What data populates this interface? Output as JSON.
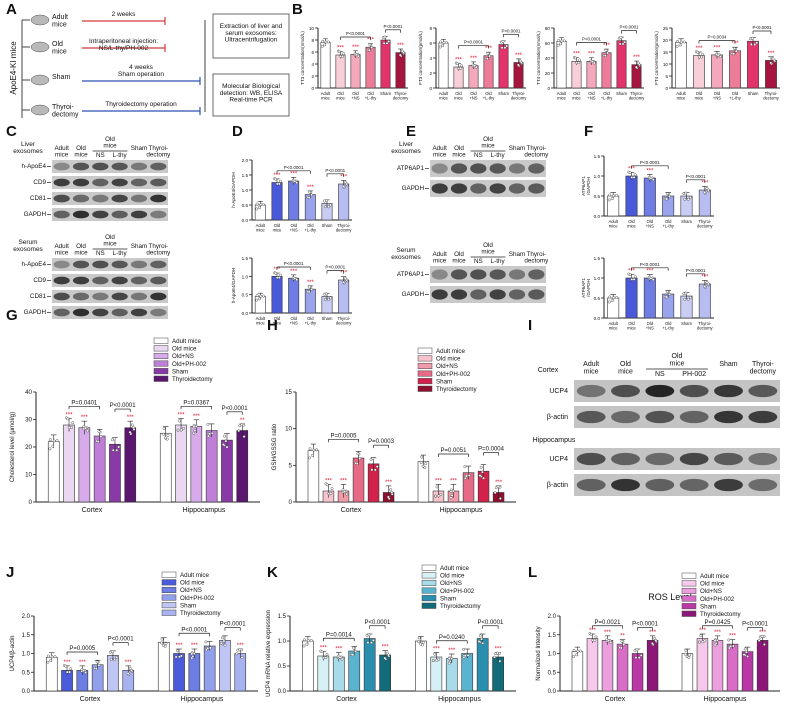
{
  "panel_letters": [
    "A",
    "B",
    "C",
    "D",
    "E",
    "F",
    "G",
    "H",
    "I",
    "J",
    "K",
    "L"
  ],
  "panel_a": {
    "side_label": "ApoE4-KI mice",
    "groups": [
      {
        "label": "Adult\nmice",
        "arrow": "2 weeks"
      },
      {
        "label": "Old\nmice",
        "arrow": "Intraperitoneal injection:\nNS/L-thy/PH-002"
      },
      {
        "label": "Sham",
        "arrow": "Sham operation",
        "duration": "4 weeks"
      },
      {
        "label": "Thyroi-\ndectomy",
        "arrow": "Thyroidectomy operation"
      }
    ],
    "box1": "Extraction of liver and\nserum exosomes:\nUltracentrifugation",
    "box2": "Molecular Biological\ndetection: WB, ELISA\nReal-time PCR"
  },
  "blot_c_top": {
    "title": "Liver\nexosomes",
    "columns": [
      "Adult\nmice",
      "Old\nmice",
      "NS",
      "L-thy",
      "Sham",
      "Thyroi-\ndectomy"
    ],
    "bracket_label": "Old\nmice",
    "rows": [
      "h-ApoE4",
      "CD9",
      "CD81",
      "GAPDH"
    ]
  },
  "blot_c_bottom": {
    "title": "Serum\nexosomes",
    "columns": [
      "Adult\nmice",
      "Old\nmice",
      "NS",
      "L-thy",
      "Sham",
      "Thyroi-\ndectomy"
    ],
    "bracket_label": "Old\nmice",
    "rows": [
      "h-ApoE4",
      "CD9",
      "CD81",
      "GAPDH"
    ]
  },
  "blot_e_top": {
    "title": "Liver\nexosomes",
    "columns": [
      "Adult\nmice",
      "Old\nmice",
      "NS",
      "L-thy",
      "Sham",
      "Thyroi-\ndectomy"
    ],
    "bracket_label": "Old\nmice",
    "rows": [
      "ATP6AP1",
      "GAPDH"
    ]
  },
  "blot_e_bottom": {
    "title": "Serum\nexosomes",
    "columns": [
      "Adult\nmice",
      "Old\nmice",
      "NS",
      "L-thy",
      "Sham",
      "Thyroi-\ndectomy"
    ],
    "bracket_label": "Old\nmice",
    "rows": [
      "ATP6AP1",
      "GAPDH"
    ]
  },
  "blot_i": {
    "columns": [
      "Adult\nmice",
      "Old\nmice",
      "NS",
      "PH-002",
      "Sham",
      "Thyroi-\ndectomy"
    ],
    "bracket_label": "Old\nmice",
    "section1": "Cortex",
    "section2": "Hippocampus",
    "rows": [
      "UCP4",
      "β-actin",
      "UCP4",
      "β-actin"
    ]
  },
  "chart_data": [
    {
      "id": "B1",
      "type": "bar",
      "categories": [
        "Adult\nmice",
        "Old\nmice",
        "Old\n+NS",
        "Old\n+L-thy",
        "Sham",
        "Thyroi-\ndectomy"
      ],
      "values": [
        7.6,
        5.5,
        5.6,
        6.8,
        8.0,
        5.9
      ],
      "ylabel": "TT3 concentration(nmol/L)",
      "ylim": [
        0,
        10
      ],
      "yticks": [
        "0",
        "2",
        "4",
        "6",
        "8",
        "10"
      ],
      "colors": [
        "#ffffff",
        "#f8cfd8",
        "#f3a9bb",
        "#ec7c98",
        "#e2336b",
        "#a6153d"
      ],
      "stars": [
        "",
        "***",
        "***",
        "***",
        "",
        "***"
      ],
      "brackets": [
        {
          "from": 1,
          "to": 3,
          "label": "P<0.0001"
        },
        {
          "from": 4,
          "to": 5,
          "label": "P<0.0001"
        }
      ]
    },
    {
      "id": "B2",
      "type": "bar",
      "categories": [
        "Adult\nmice",
        "Old\nmice",
        "Old\n+NS",
        "Old\n+L-thy",
        "Sham",
        "Thyroi-\ndectomy"
      ],
      "values": [
        6.0,
        2.8,
        3.0,
        4.3,
        5.8,
        3.4
      ],
      "ylabel": "FT3 concentration(pmol/L)",
      "ylim": [
        0,
        8
      ],
      "yticks": [
        "0",
        "2",
        "4",
        "6",
        "8"
      ],
      "colors": [
        "#ffffff",
        "#f8cfd8",
        "#f3a9bb",
        "#ec7c98",
        "#e2336b",
        "#a6153d"
      ],
      "stars": [
        "",
        "***",
        "***",
        "***",
        "",
        "***"
      ],
      "brackets": [
        {
          "from": 1,
          "to": 3,
          "label": "P<0.0001"
        },
        {
          "from": 4,
          "to": 5,
          "label": "P<0.0001"
        }
      ]
    },
    {
      "id": "B3",
      "type": "bar",
      "categories": [
        "Adult\nmice",
        "Old\nmice",
        "Old\n+NS",
        "Old\n+L-thy",
        "Sham",
        "Thyroi-\ndectomy"
      ],
      "values": [
        70,
        40,
        40,
        53,
        71,
        35
      ],
      "ylabel": "TT4 concentration(nmol/L)",
      "ylim": [
        0,
        90
      ],
      "yticks": [
        "0",
        "20",
        "40",
        "60",
        "80"
      ],
      "colors": [
        "#ffffff",
        "#f8cfd8",
        "#f3a9bb",
        "#ec7c98",
        "#e2336b",
        "#a6153d"
      ],
      "stars": [
        "",
        "***",
        "***",
        "***",
        "",
        "***"
      ],
      "brackets": [
        {
          "from": 1,
          "to": 3,
          "label": "P<0.0001"
        },
        {
          "from": 4,
          "to": 5,
          "label": "P<0.0001"
        }
      ]
    },
    {
      "id": "B4",
      "type": "bar",
      "categories": [
        "Adult\nmice",
        "Old\nmice",
        "Old\n+NS",
        "Old\n+L-thy",
        "Sham",
        "Thyroi-\ndectomy"
      ],
      "values": [
        19.0,
        13.5,
        13.8,
        15.5,
        19.5,
        11.5
      ],
      "ylabel": "FT4 concentration(pmol/L)",
      "ylim": [
        0,
        25
      ],
      "yticks": [
        "0",
        "5",
        "10",
        "15",
        "20",
        "25"
      ],
      "colors": [
        "#ffffff",
        "#f8cfd8",
        "#f3a9bb",
        "#ec7c98",
        "#e2336b",
        "#a6153d"
      ],
      "stars": [
        "",
        "***",
        "***",
        "***",
        "",
        "***"
      ],
      "brackets": [
        {
          "from": 1,
          "to": 3,
          "label": "P=0.0034"
        },
        {
          "from": 4,
          "to": 5,
          "label": "P<0.0001"
        }
      ]
    },
    {
      "id": "D1",
      "type": "bar",
      "categories": [
        "Adult\nmice",
        "Old\nmice",
        "Old\n+NS",
        "Old\n+L-thy",
        "Sham",
        "Thyroi-\ndectomy"
      ],
      "values": [
        0.5,
        1.25,
        1.3,
        0.85,
        0.55,
        1.2
      ],
      "ylabel": "h-ApoE4/GAPDH",
      "ylim": [
        0,
        2.0
      ],
      "yticks": [
        "0.0",
        "0.5",
        "1.0",
        "1.5",
        "2.0"
      ],
      "colors": [
        "#ffffff",
        "#4a59d9",
        "#6f7ce3",
        "#9aa4ec",
        "#c9cdf4",
        "#b7bdf0"
      ],
      "stars": [
        "",
        "***",
        "***",
        "***",
        "",
        "***"
      ],
      "brackets": [
        {
          "from": 1,
          "to": 3,
          "label": "P<0.0001"
        },
        {
          "from": 4,
          "to": 5,
          "label": "P<0.0001"
        }
      ]
    },
    {
      "id": "D2",
      "type": "bar",
      "categories": [
        "Adult\nmice",
        "Old\nmice",
        "Old\n+NS",
        "Old\n+L-thy",
        "Sham",
        "Thyroi-\ndectomy"
      ],
      "values": [
        0.45,
        1.0,
        0.95,
        0.65,
        0.45,
        0.9
      ],
      "ylabel": "h-ApoE4/GAPDH",
      "ylim": [
        0,
        1.5
      ],
      "yticks": [
        "0.0",
        "0.5",
        "1.0",
        "1.5"
      ],
      "colors": [
        "#ffffff",
        "#4a59d9",
        "#6f7ce3",
        "#9aa4ec",
        "#c9cdf4",
        "#b7bdf0"
      ],
      "stars": [
        "",
        "***",
        "***",
        "***",
        "",
        "***"
      ],
      "brackets": [
        {
          "from": 1,
          "to": 3,
          "label": "P<0.0001"
        },
        {
          "from": 4,
          "to": 5,
          "label": "P<0.0001"
        }
      ]
    },
    {
      "id": "F1",
      "type": "bar",
      "categories": [
        "Adult\nmice",
        "Old\nmice",
        "Old\n+NS",
        "Old\n+L-thy",
        "Sham",
        "Thyroi-\ndectomy"
      ],
      "values": [
        0.5,
        1.0,
        0.95,
        0.5,
        0.5,
        0.65
      ],
      "ylabel": "ATP6AP1\n/GAPDH",
      "ylim": [
        0,
        1.5
      ],
      "yticks": [
        "0.0",
        "0.5",
        "1.0",
        "1.5"
      ],
      "colors": [
        "#ffffff",
        "#4a59d9",
        "#6f7ce3",
        "#9aa4ec",
        "#c9cdf4",
        "#b7bdf0"
      ],
      "stars": [
        "",
        "***",
        "***",
        "",
        "",
        "***"
      ],
      "brackets": [
        {
          "from": 1,
          "to": 3,
          "label": "P<0.0001"
        },
        {
          "from": 4,
          "to": 5,
          "label": "P<0.0001"
        }
      ]
    },
    {
      "id": "F2",
      "type": "bar",
      "categories": [
        "Adult\nmice",
        "Old\nmice",
        "Old\n+NS",
        "Old\n+L-thy",
        "Sham",
        "Thyroi-\ndectomy"
      ],
      "values": [
        0.5,
        1.0,
        1.0,
        0.6,
        0.55,
        0.85
      ],
      "ylabel": "ATP6AP1\n/GAPDH",
      "ylim": [
        0,
        1.5
      ],
      "yticks": [
        "0.0",
        "0.5",
        "1.0",
        "1.5"
      ],
      "colors": [
        "#ffffff",
        "#4a59d9",
        "#6f7ce3",
        "#9aa4ec",
        "#c9cdf4",
        "#b7bdf0"
      ],
      "stars": [
        "",
        "***",
        "***",
        "",
        "",
        "***"
      ],
      "brackets": [
        {
          "from": 1,
          "to": 3,
          "label": "P<0.0001"
        },
        {
          "from": 4,
          "to": 5,
          "label": "P<0.0001"
        }
      ]
    },
    {
      "id": "G",
      "type": "bar",
      "groups": [
        "Cortex",
        "Hippocampus"
      ],
      "series": [
        {
          "name": "Adult mice",
          "values": [
            22,
            25
          ]
        },
        {
          "name": "Old mice",
          "values": [
            28,
            28
          ]
        },
        {
          "name": "Old+NS",
          "values": [
            27,
            27.5
          ]
        },
        {
          "name": "Old+PH-002",
          "values": [
            24,
            26
          ]
        },
        {
          "name": "Sham",
          "values": [
            21,
            22.5
          ]
        },
        {
          "name": "Thyroidectomy",
          "values": [
            27,
            26
          ]
        }
      ],
      "ylabel": "Cholesterol level (μmol/g)",
      "ylim": [
        0,
        40
      ],
      "yticks": [
        "0",
        "10",
        "20",
        "30",
        "40"
      ],
      "colors": [
        "#ffffff",
        "#ead7f2",
        "#d7abea",
        "#bf7fd9",
        "#8a3aa6",
        "#5b1670"
      ],
      "stars": [
        [
          "",
          "***",
          "***",
          "",
          "",
          "***"
        ],
        [
          "",
          "***",
          "***",
          "",
          "",
          "**"
        ]
      ],
      "brackets": [
        {
          "group": 0,
          "from": 1,
          "to": 3,
          "label": "P=0.0401"
        },
        {
          "group": 0,
          "from": 4,
          "to": 5,
          "label": "P<0.0001"
        },
        {
          "group": 1,
          "from": 1,
          "to": 3,
          "label": "P=0.0367"
        },
        {
          "group": 1,
          "from": 4,
          "to": 5,
          "label": "P<0.0001"
        }
      ]
    },
    {
      "id": "H",
      "type": "bar",
      "groups": [
        "Cortex",
        "Hippocampus"
      ],
      "series": [
        {
          "name": "Adult mice",
          "values": [
            7.0,
            5.5
          ]
        },
        {
          "name": "Old mice",
          "values": [
            1.5,
            1.5
          ]
        },
        {
          "name": "Old+NS",
          "values": [
            1.5,
            1.5
          ]
        },
        {
          "name": "Old+PH-002",
          "values": [
            6.0,
            4.0
          ]
        },
        {
          "name": "Sham",
          "values": [
            5.2,
            4.2
          ]
        },
        {
          "name": "Thyroidectomy",
          "values": [
            1.3,
            1.3
          ]
        }
      ],
      "ylabel": "GSH/GSSG ratio",
      "ylim": [
        0,
        15
      ],
      "yticks": [
        "0",
        "5",
        "10",
        "15"
      ],
      "colors": [
        "#ffffff",
        "#f7c4ce",
        "#f09aaa",
        "#e66a85",
        "#d2224b",
        "#8f0f2e"
      ],
      "stars": [
        [
          "",
          "***",
          "***",
          "",
          "",
          "***"
        ],
        [
          "",
          "***",
          "***",
          "",
          "",
          "***"
        ]
      ],
      "brackets": [
        {
          "group": 0,
          "from": 1,
          "to": 3,
          "label": "P=0.0005"
        },
        {
          "group": 0,
          "from": 4,
          "to": 5,
          "label": "P=0.0003"
        },
        {
          "group": 1,
          "from": 1,
          "to": 3,
          "label": "P=0.0051"
        },
        {
          "group": 1,
          "from": 4,
          "to": 5,
          "label": "P=0.0004"
        }
      ]
    },
    {
      "id": "J",
      "type": "bar",
      "groups": [
        "Cortex",
        "Hippocampus"
      ],
      "series": [
        {
          "name": "Adult mice",
          "values": [
            0.9,
            1.3
          ]
        },
        {
          "name": "Old mice",
          "values": [
            0.55,
            1.0
          ]
        },
        {
          "name": "Old+NS",
          "values": [
            0.55,
            1.0
          ]
        },
        {
          "name": "Old+PH-002",
          "values": [
            0.7,
            1.2
          ]
        },
        {
          "name": "Sham",
          "values": [
            0.95,
            1.35
          ]
        },
        {
          "name": "Thyroidectomy",
          "values": [
            0.55,
            1.0
          ]
        }
      ],
      "ylabel": "UCP4/β-actin",
      "ylim": [
        0,
        2.0
      ],
      "yticks": [
        "0.0",
        "0.5",
        "1.0",
        "1.5",
        "2.0"
      ],
      "colors": [
        "#ffffff",
        "#4a5cdc",
        "#6c7de4",
        "#92a0ec",
        "#bfc6f4",
        "#a9b2f0"
      ],
      "stars": [
        [
          "",
          "***",
          "***",
          "",
          "",
          "***"
        ],
        [
          "",
          "***",
          "***",
          "",
          "",
          "***"
        ]
      ],
      "brackets": [
        {
          "group": 0,
          "from": 1,
          "to": 3,
          "label": "P=0.0005"
        },
        {
          "group": 0,
          "from": 4,
          "to": 5,
          "label": "P<0.0001"
        },
        {
          "group": 1,
          "from": 1,
          "to": 3,
          "label": "P<0.0001"
        },
        {
          "group": 1,
          "from": 4,
          "to": 5,
          "label": "P<0.0001"
        }
      ]
    },
    {
      "id": "K",
      "type": "bar",
      "groups": [
        "Cortex",
        "Hippocampus"
      ],
      "series": [
        {
          "name": "Adult mice",
          "values": [
            1.0,
            1.0
          ]
        },
        {
          "name": "Old mice",
          "values": [
            0.7,
            0.68
          ]
        },
        {
          "name": "Old+NS",
          "values": [
            0.68,
            0.65
          ]
        },
        {
          "name": "Old+PH-002",
          "values": [
            0.8,
            0.75
          ]
        },
        {
          "name": "Sham",
          "values": [
            1.05,
            1.05
          ]
        },
        {
          "name": "Thyroidectomy",
          "values": [
            0.72,
            0.68
          ]
        }
      ],
      "ylabel": "UCP4 mRNA relative expression",
      "ylim": [
        0,
        1.5
      ],
      "yticks": [
        "0.0",
        "0.5",
        "1.0",
        "1.5"
      ],
      "colors": [
        "#ffffff",
        "#d6f0f6",
        "#a8dbe9",
        "#5ab4cf",
        "#2a8faf",
        "#126b78"
      ],
      "stars": [
        [
          "",
          "***",
          "***",
          "",
          "",
          "***"
        ],
        [
          "",
          "***",
          "***",
          "",
          "",
          "***"
        ]
      ],
      "brackets": [
        {
          "group": 0,
          "from": 1,
          "to": 3,
          "label": "P=0.0014"
        },
        {
          "group": 0,
          "from": 4,
          "to": 5,
          "label": "P<0.0001"
        },
        {
          "group": 1,
          "from": 1,
          "to": 3,
          "label": "P=0.0240"
        },
        {
          "group": 1,
          "from": 4,
          "to": 5,
          "label": "P<0.0001"
        }
      ]
    },
    {
      "id": "L",
      "type": "bar",
      "title": "ROS Level",
      "groups": [
        "Cortex",
        "Hippocampus"
      ],
      "series": [
        {
          "name": "Adult mice",
          "values": [
            1.05,
            1.0
          ]
        },
        {
          "name": "Old mice",
          "values": [
            1.4,
            1.4
          ]
        },
        {
          "name": "Old+NS",
          "values": [
            1.35,
            1.35
          ]
        },
        {
          "name": "Old+PH-002",
          "values": [
            1.25,
            1.25
          ]
        },
        {
          "name": "Sham",
          "values": [
            1.0,
            1.05
          ]
        },
        {
          "name": "Thyroidectomy",
          "values": [
            1.35,
            1.35
          ]
        }
      ],
      "ylabel": "Normalized Intensity",
      "ylim": [
        0,
        2.0
      ],
      "yticks": [
        "0.0",
        "0.5",
        "1.0",
        "1.5",
        "2.0"
      ],
      "colors": [
        "#ffffff",
        "#f6c9ec",
        "#eb9fdc",
        "#d96cc6",
        "#bc37a6",
        "#8c1778"
      ],
      "stars": [
        [
          "",
          "***",
          "***",
          "**",
          "",
          "***"
        ],
        [
          "",
          "***",
          "***",
          "***",
          "",
          "***"
        ]
      ],
      "brackets": [
        {
          "group": 0,
          "from": 1,
          "to": 3,
          "label": "P=0.0021"
        },
        {
          "group": 0,
          "from": 4,
          "to": 5,
          "label": "P<0.0001"
        },
        {
          "group": 1,
          "from": 1,
          "to": 3,
          "label": "P=0.0425"
        },
        {
          "group": 1,
          "from": 4,
          "to": 5,
          "label": "P<0.0001"
        }
      ]
    }
  ],
  "star_color": "#e0102a"
}
